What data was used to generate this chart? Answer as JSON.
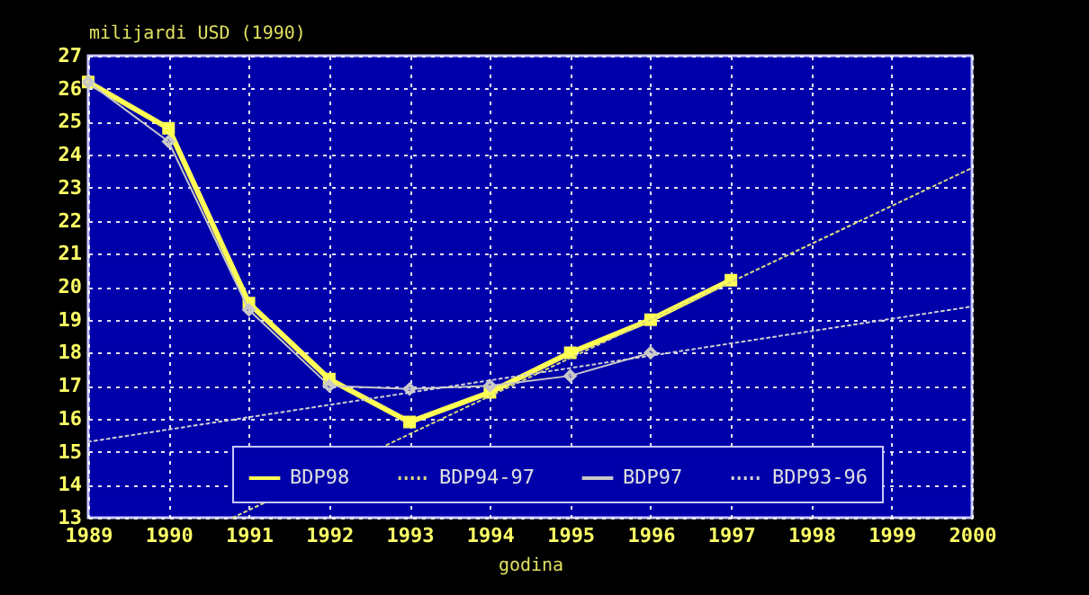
{
  "chart_data": {
    "type": "line",
    "xlabel": "godina",
    "ylabel": "milijardi USD (1990)",
    "xlim": [
      1989,
      2000
    ],
    "xticks": [
      1989,
      1990,
      1991,
      1992,
      1993,
      1994,
      1995,
      1996,
      1997,
      1998,
      1999,
      2000
    ],
    "ylim": [
      13,
      27
    ],
    "yticks": [
      13,
      14,
      15,
      16,
      17,
      18,
      19,
      20,
      21,
      22,
      23,
      24,
      25,
      26,
      27
    ],
    "grid": true,
    "legend": "bottom",
    "series": [
      {
        "name": "BDP98",
        "color": "#ffff55",
        "marker": "square",
        "line_style": "solid",
        "x": [
          1989,
          1990,
          1991,
          1992,
          1993,
          1994,
          1995,
          1996,
          1997
        ],
        "values": [
          26.2,
          24.8,
          19.5,
          17.2,
          15.9,
          16.8,
          18.0,
          19.0,
          20.2
        ]
      },
      {
        "name": "BDP94-97",
        "color": "#d8d880",
        "marker": "none",
        "line_style": "dotted",
        "x": [
          1990.8,
          2000
        ],
        "values": [
          13.0,
          23.6
        ]
      },
      {
        "name": "BDP97",
        "color": "#c8c8c8",
        "marker": "diamond",
        "line_style": "solid",
        "x": [
          1989,
          1990,
          1991,
          1992,
          1993,
          1994,
          1995,
          1996
        ],
        "values": [
          26.2,
          24.4,
          19.3,
          17.0,
          16.9,
          17.0,
          17.3,
          18.0
        ]
      },
      {
        "name": "BDP93-96",
        "color": "#d0d0d0",
        "marker": "none",
        "line_style": "dotted",
        "x": [
          1989,
          2000
        ],
        "values": [
          15.3,
          19.4
        ]
      }
    ]
  }
}
